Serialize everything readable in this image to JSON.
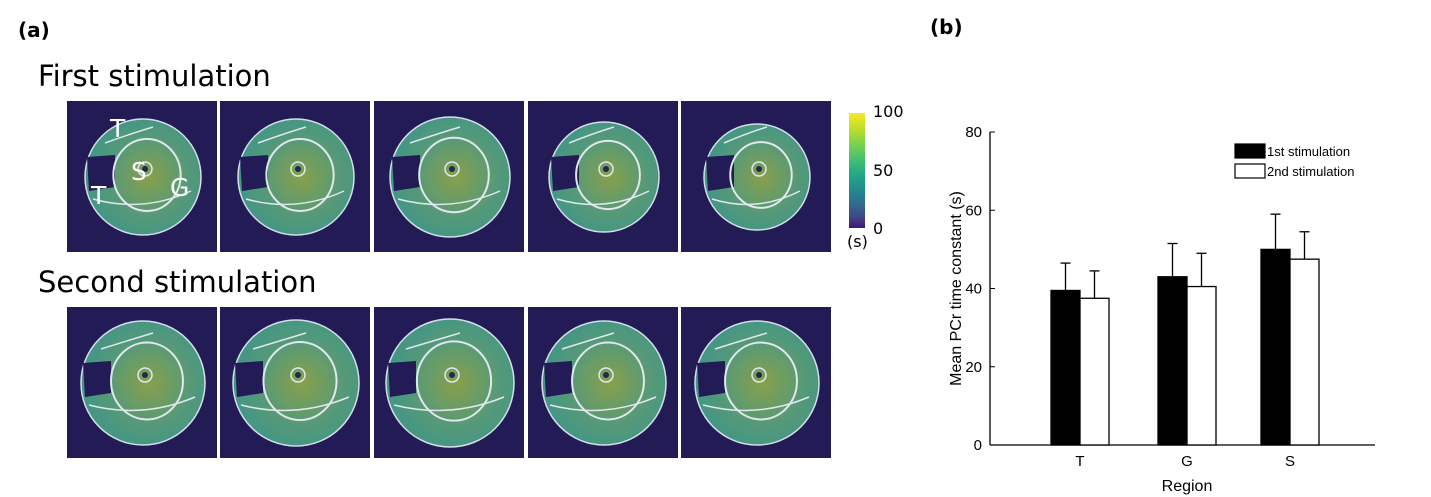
{
  "panel_a": {
    "label": "(a)",
    "row1_title": "First stimulation",
    "row2_title": "Second stimulation",
    "region_labels": [
      "T",
      "S",
      "G",
      "T"
    ],
    "colorbar": {
      "max": "100",
      "mid": "50",
      "min": "0",
      "unit": "(s)"
    },
    "colors": {
      "background": "#221b56",
      "tissue": "#3f9c8e",
      "contour": "#dfe8ee"
    }
  },
  "panel_b": {
    "label": "(b)"
  },
  "chart_data": {
    "type": "bar",
    "categories": [
      "T",
      "G",
      "S"
    ],
    "series": [
      {
        "name": "1st stimulation",
        "values": [
          39.5,
          43.0,
          50.0
        ],
        "errors": [
          7.0,
          8.5,
          9.0
        ],
        "color": "#000000"
      },
      {
        "name": "2nd stimulation",
        "values": [
          37.5,
          40.5,
          47.5
        ],
        "errors": [
          7.0,
          8.5,
          7.0
        ],
        "color": "#ffffff"
      }
    ],
    "xlabel": "Region",
    "ylabel": "Mean PCr time constant (s)",
    "ylim": [
      0,
      80
    ],
    "yticks": [
      "0",
      "20",
      "40",
      "60",
      "80"
    ],
    "legend_position": "top-right",
    "grid": false
  }
}
